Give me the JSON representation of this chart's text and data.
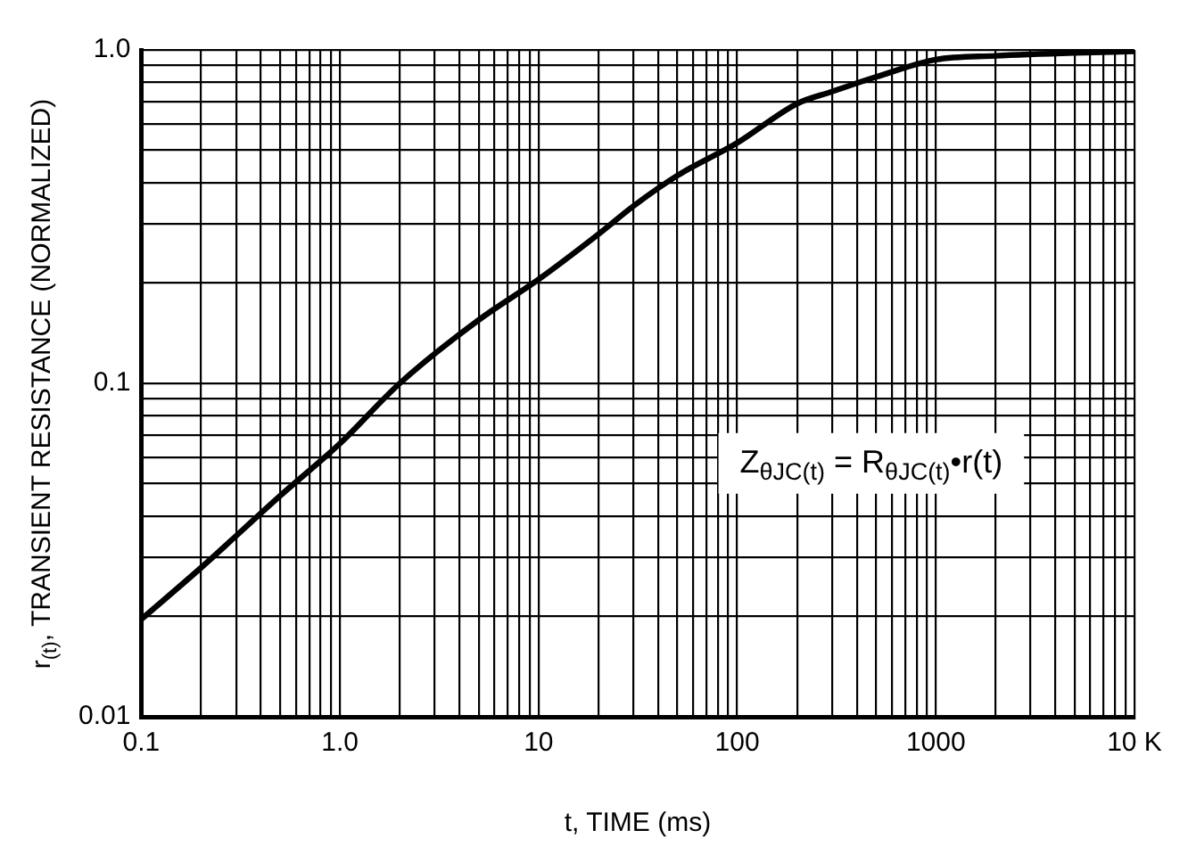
{
  "chart_data": {
    "type": "line",
    "xlabel": "t, TIME (ms)",
    "ylabel": "r$_{(t)}$, TRANSIENT RESISTANCE (NORMALIZED)",
    "annotations": [
      "Z$_{θJC(t)}$ = R$_{θJC(t)}$•r(t)"
    ],
    "log": "xy",
    "grid": true,
    "legend": false,
    "marker": "none",
    "line_style": "solid",
    "xlim": [
      0.1,
      10000
    ],
    "ylim": [
      0.01,
      1
    ],
    "xticks": [
      0.1,
      {
        "value": 0.2,
        "label": null
      },
      {
        "value": 0.3,
        "label": null
      },
      {
        "value": 0.4,
        "label": null
      },
      {
        "value": 0.5,
        "label": null
      },
      {
        "value": 0.6,
        "label": null
      },
      {
        "value": 0.7,
        "label": null
      },
      {
        "value": 0.8,
        "label": null
      },
      {
        "value": 0.9,
        "label": null
      },
      {
        "value": 1,
        "label": "1.0"
      },
      {
        "value": 2,
        "label": null
      },
      {
        "value": 3,
        "label": null
      },
      {
        "value": 4,
        "label": null
      },
      {
        "value": 5,
        "label": null
      },
      {
        "value": 6,
        "label": null
      },
      {
        "value": 7,
        "label": null
      },
      {
        "value": 8,
        "label": null
      },
      {
        "value": 9,
        "label": null
      },
      10,
      {
        "value": 20,
        "label": null
      },
      {
        "value": 30,
        "label": null
      },
      {
        "value": 40,
        "label": null
      },
      {
        "value": 50,
        "label": null
      },
      {
        "value": 60,
        "label": null
      },
      {
        "value": 70,
        "label": null
      },
      {
        "value": 80,
        "label": null
      },
      {
        "value": 90,
        "label": null
      },
      100,
      {
        "value": 200,
        "label": null
      },
      {
        "value": 300,
        "label": null
      },
      {
        "value": 400,
        "label": null
      },
      {
        "value": 500,
        "label": null
      },
      {
        "value": 600,
        "label": null
      },
      {
        "value": 700,
        "label": null
      },
      {
        "value": 800,
        "label": null
      },
      {
        "value": 900,
        "label": null
      },
      1000,
      {
        "value": 2000,
        "label": null
      },
      {
        "value": 3000,
        "label": null
      },
      {
        "value": 4000,
        "label": null
      },
      {
        "value": 5000,
        "label": null
      },
      {
        "value": 6000,
        "label": null
      },
      {
        "value": 7000,
        "label": null
      },
      {
        "value": 8000,
        "label": null
      },
      {
        "value": 9000,
        "label": null
      },
      {
        "value": 10000,
        "label": "10 K"
      }
    ],
    "yticks": [
      0.01,
      {
        "value": 0.02,
        "label": null
      },
      {
        "value": 0.03,
        "label": null
      },
      {
        "value": 0.04,
        "label": null
      },
      {
        "value": 0.05,
        "label": null
      },
      {
        "value": 0.06,
        "label": null
      },
      {
        "value": 0.07,
        "label": null
      },
      {
        "value": 0.08,
        "label": null
      },
      {
        "value": 0.09,
        "label": null
      },
      0.1,
      {
        "value": 0.2,
        "label": null
      },
      {
        "value": 0.3,
        "label": null
      },
      {
        "value": 0.4,
        "label": null
      },
      {
        "value": 0.5,
        "label": null
      },
      {
        "value": 0.6,
        "label": null
      },
      {
        "value": 0.7,
        "label": null
      },
      {
        "value": 0.8,
        "label": null
      },
      {
        "value": 0.9,
        "label": null
      },
      {
        "value": 1,
        "label": "1.0"
      }
    ],
    "x": [
      0.1,
      0.2,
      0.5,
      1,
      2,
      5,
      10,
      20,
      30,
      50,
      100,
      200,
      300,
      500,
      1000,
      2000,
      5000,
      10000
    ],
    "series": [
      {
        "color": "#000000",
        "values": [
          0.0196,
          0.028,
          0.046,
          0.066,
          0.1,
          0.155,
          0.205,
          0.28,
          0.34,
          0.42,
          0.526,
          0.69,
          0.75,
          0.83,
          0.935,
          0.96,
          0.98,
          0.99
        ]
      }
    ]
  }
}
